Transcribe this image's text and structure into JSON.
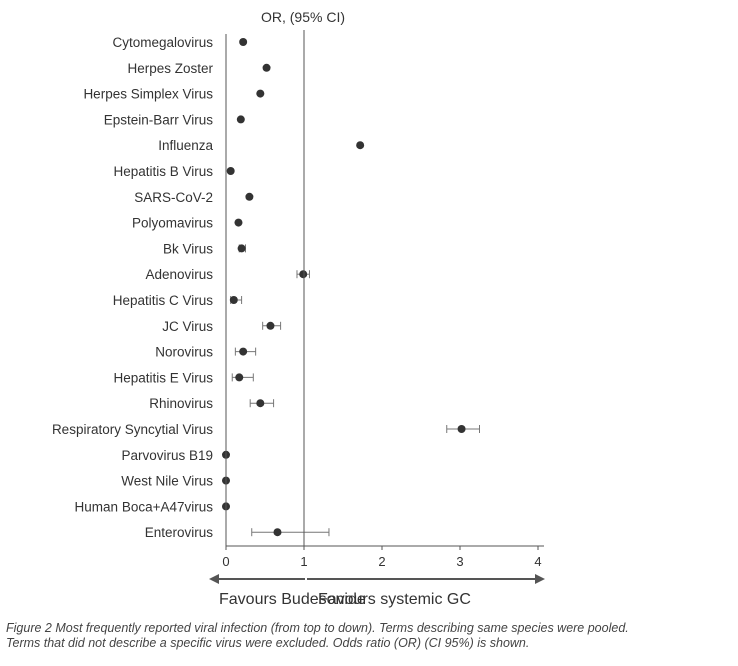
{
  "chart_data": {
    "type": "scatter",
    "title": "OR, (95% CI)",
    "categories": [
      "Cytomegalovirus",
      "Herpes Zoster",
      "Herpes Simplex Virus",
      "Epstein-Barr Virus",
      "Influenza",
      "Hepatitis B Virus",
      "SARS-CoV-2",
      "Polyomavirus",
      "Bk Virus",
      "Adenovirus",
      "Hepatitis C Virus",
      "JC Virus",
      "Norovirus",
      "Hepatitis E Virus",
      "Rhinovirus",
      "Respiratory Syncytial Virus",
      "Parvovirus B19",
      "West Nile Virus",
      "Human Boca+A47virus",
      "Enterovirus"
    ],
    "values": [
      0.22,
      0.52,
      0.44,
      0.19,
      1.72,
      0.06,
      0.3,
      0.16,
      0.2,
      0.99,
      0.1,
      0.57,
      0.22,
      0.17,
      0.44,
      3.02,
      0.0,
      0.0,
      0.0,
      0.66
    ],
    "ci_low": [
      null,
      null,
      null,
      null,
      null,
      null,
      null,
      null,
      0.17,
      0.91,
      0.06,
      0.47,
      0.12,
      0.08,
      0.31,
      2.83,
      null,
      null,
      null,
      0.33
    ],
    "ci_high": [
      null,
      null,
      null,
      null,
      null,
      null,
      null,
      null,
      0.25,
      1.07,
      0.2,
      0.7,
      0.38,
      0.35,
      0.61,
      3.25,
      null,
      null,
      null,
      1.32
    ],
    "xlim": [
      0,
      4
    ],
    "xticks": [
      "0",
      "1",
      "2",
      "3",
      "4"
    ],
    "reference_line": 1,
    "colors": {
      "marker": "#333333",
      "axis": "#555555",
      "errorbar": "#777777"
    }
  },
  "annotations": {
    "left": "Favours Budesonide",
    "right": "Favours systemic GC"
  },
  "caption": {
    "line1": "Figure 2 Most frequently reported viral infection (from top to down). Terms describing same species were pooled.",
    "line2": "Terms that did not describe a specific virus were excluded. Odds ratio (OR) (CI 95%) is shown."
  }
}
